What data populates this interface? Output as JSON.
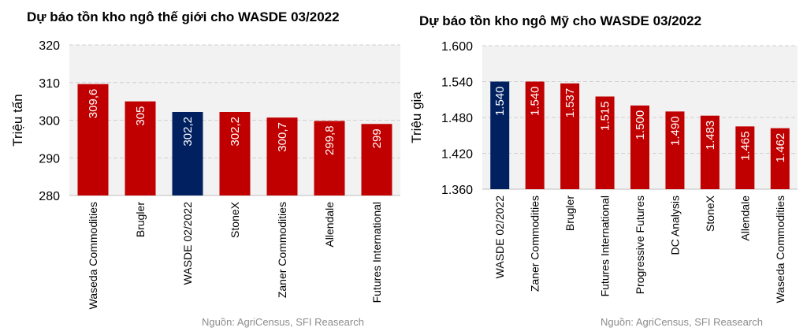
{
  "colors": {
    "red": "#c00000",
    "navy": "#002060",
    "grid": "#d0d0d0",
    "plot_bg": "#f2f2f2"
  },
  "chart_data": [
    {
      "type": "bar",
      "title": "Dự báo tồn kho ngô thế giới cho WASDE 03/2022",
      "ylabel": "Triệu tấn",
      "xlabel": "",
      "ylim": [
        280,
        320
      ],
      "yticks": [
        280,
        290,
        300,
        310,
        320
      ],
      "ytick_labels": [
        "280",
        "290",
        "300",
        "310",
        "320"
      ],
      "grid": true,
      "categories": [
        "Waseda Commodities",
        "Brugler",
        "WASDE 02/2022",
        "StoneX",
        "Zaner Commodities",
        "Allendale",
        "Futures International"
      ],
      "values": [
        309.6,
        305,
        302.2,
        302.2,
        300.7,
        299.8,
        299
      ],
      "value_labels": [
        "309,6",
        "305",
        "302,2",
        "302,2",
        "300,7",
        "299,8",
        "299"
      ],
      "bar_colors": [
        "red",
        "red",
        "navy",
        "red",
        "red",
        "red",
        "red"
      ],
      "source": "Nguồn: AgriCensus, SFI Reasearch"
    },
    {
      "type": "bar",
      "title": "Dự báo tồn kho ngô Mỹ cho WASDE 03/2022",
      "ylabel": "Triệu giạ",
      "xlabel": "",
      "ylim": [
        1360,
        1600
      ],
      "yticks": [
        1360,
        1420,
        1480,
        1540,
        1600
      ],
      "ytick_labels": [
        "1.360",
        "1.420",
        "1.480",
        "1.540",
        "1.600"
      ],
      "grid": true,
      "categories": [
        "WASDE 02/2022",
        "Zaner Commodities",
        "Brugler",
        "Futures International",
        "Progressive Futures",
        "DC Analysis",
        "StoneX",
        "Allendale",
        "Waseda Commodities"
      ],
      "values": [
        1540,
        1540,
        1537,
        1515,
        1500,
        1490,
        1483,
        1465,
        1462
      ],
      "value_labels": [
        "1.540",
        "1.540",
        "1.537",
        "1.515",
        "1.500",
        "1.490",
        "1.483",
        "1.465",
        "1.462"
      ],
      "bar_colors": [
        "navy",
        "red",
        "red",
        "red",
        "red",
        "red",
        "red",
        "red",
        "red"
      ],
      "source": "Nguồn: AgriCensus, SFI Reasearch"
    }
  ]
}
